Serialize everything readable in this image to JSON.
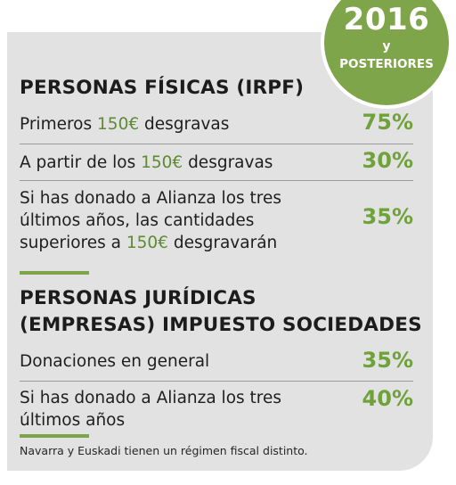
{
  "badge": {
    "year": "2016",
    "connector": "y",
    "label": "POSTERIORES"
  },
  "individuals": {
    "title": "PERSONAS FÍSICAS (IRPF)",
    "rows": [
      {
        "lines": [
          [
            {
              "t": "Primeros "
            },
            {
              "t": "150€",
              "h": true
            },
            {
              "t": " desgravas"
            }
          ]
        ],
        "percent": "75%"
      },
      {
        "lines": [
          [
            {
              "t": "A partir de los "
            },
            {
              "t": "150€",
              "h": true
            },
            {
              "t": " desgravas"
            }
          ]
        ],
        "percent": "30%"
      },
      {
        "lines": [
          [
            {
              "t": "Si has donado a Alianza los tres"
            }
          ],
          [
            {
              "t": "últimos años, las cantidades"
            }
          ],
          [
            {
              "t": "superiores a "
            },
            {
              "t": "150€",
              "h": true
            },
            {
              "t": " desgravarán"
            }
          ]
        ],
        "percent": "35%"
      }
    ]
  },
  "companies": {
    "title_line1": "PERSONAS JURÍDICAS",
    "title_line2": "(EMPRESAS) IMPUESTO SOCIEDADES",
    "rows": [
      {
        "lines": [
          [
            {
              "t": "Donaciones en general"
            }
          ]
        ],
        "percent": "35%"
      },
      {
        "lines": [
          [
            {
              "t": "Si has donado a Alianza los tres"
            }
          ],
          [
            {
              "t": "últimos años"
            }
          ]
        ],
        "percent": "40%"
      }
    ]
  },
  "footnote": "Navarra y Euskadi tienen un régimen fiscal distinto.",
  "colors": {
    "accent_green": "#7fa54a",
    "percent_green": "#6fa23a",
    "highlight_green": "#5f8a33",
    "panel_gray": "#e2e2e2"
  }
}
